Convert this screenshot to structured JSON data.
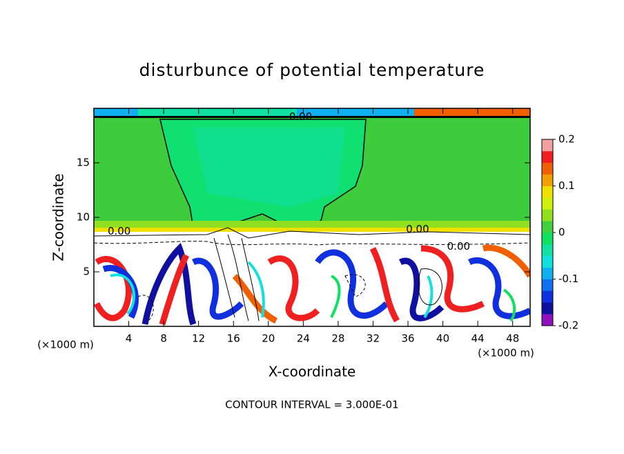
{
  "chart_data": {
    "type": "heatmap",
    "title": "disturbunce of potential temperature",
    "x_label": "X-coordinate",
    "y_label": "Z-coordinate",
    "x_unit_label": "(×1000 m)",
    "x_unit_label_right": "(×1000 m)",
    "footnote": "CONTOUR INTERVAL = 3.000E-01",
    "xlim": [
      0,
      50
    ],
    "ylim": [
      0,
      20
    ],
    "xticks": [
      4,
      8,
      12,
      16,
      20,
      24,
      28,
      32,
      36,
      40,
      44,
      48
    ],
    "yticks": [
      5,
      10,
      15
    ],
    "colorbar": {
      "lim": [
        -0.2,
        0.2
      ],
      "ticks": [
        -0.2,
        -0.1,
        0,
        0.1,
        0.2
      ],
      "colors": [
        "#9010c0",
        "#1010a0",
        "#1030e0",
        "#1070f0",
        "#10b0f0",
        "#10e0e0",
        "#10e0a0",
        "#10e060",
        "#40d040",
        "#90e020",
        "#d0f010",
        "#f0e000",
        "#f0a000",
        "#f06000",
        "#f02020",
        "#f0a0a0"
      ]
    },
    "contour_labels": [
      {
        "text": "0.00",
        "x": 23.7,
        "y": 19.2
      },
      {
        "text": "0.00",
        "x": 2.9,
        "y": 8.7
      },
      {
        "text": "0.00",
        "x": 37.1,
        "y": 8.9
      },
      {
        "text": "0.00",
        "x": 41.8,
        "y": 7.3
      }
    ]
  }
}
